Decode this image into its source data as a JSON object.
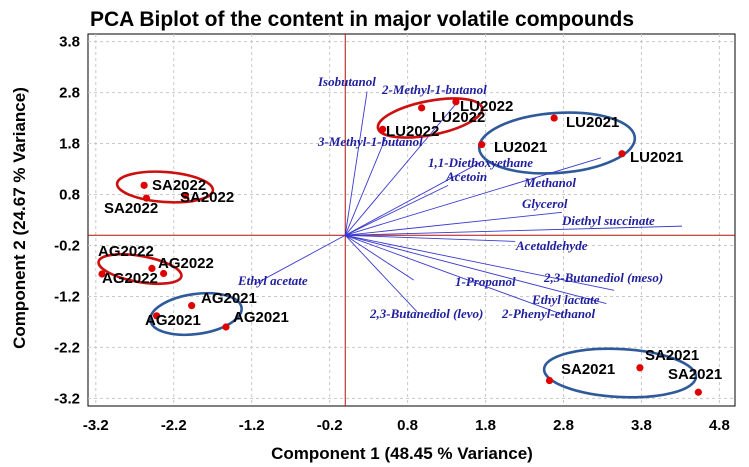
{
  "chart_data": {
    "type": "scatter",
    "title": "PCA Biplot of the content in major volatile compounds",
    "xlabel": "Component 1 (48.45 % Variance)",
    "ylabel": "Component 2 (24.67 % Variance)",
    "xlim": [
      -3.3,
      5.0
    ],
    "ylim": [
      -3.35,
      3.95
    ],
    "xticks": [
      "-3.2",
      "-2.2",
      "-1.2",
      "-0.2",
      "0.8",
      "1.8",
      "2.8",
      "3.8",
      "4.8"
    ],
    "yticks": [
      "3.8",
      "2.8",
      "1.8",
      "0.8",
      "-0.2",
      "-1.2",
      "-2.2",
      "-3.2"
    ],
    "grid": true,
    "colors": {
      "points": "#e00000",
      "vectors": "#3a3ad0",
      "axis_lines": "#b01010",
      "ellipse_red": "#cc1010",
      "ellipse_blue": "#2e5a9a"
    },
    "points": [
      {
        "label": "SA2022",
        "x": -2.58,
        "y": 0.98
      },
      {
        "label": "SA2022",
        "x": -2.55,
        "y": 0.73
      },
      {
        "label": "SA2022",
        "x": -2.05,
        "y": 0.78
      },
      {
        "label": "AG2022",
        "x": -3.12,
        "y": -0.76
      },
      {
        "label": "AG2022",
        "x": -2.48,
        "y": -0.65
      },
      {
        "label": "AG2022",
        "x": -2.33,
        "y": -0.75
      },
      {
        "label": "AG2021",
        "x": -2.42,
        "y": -1.58
      },
      {
        "label": "AG2021",
        "x": -1.97,
        "y": -1.38
      },
      {
        "label": "AG2021",
        "x": -1.53,
        "y": -1.8
      },
      {
        "label": "LU2022",
        "x": 0.48,
        "y": 2.08
      },
      {
        "label": "LU2022",
        "x": 0.98,
        "y": 2.5
      },
      {
        "label": "LU2022",
        "x": 1.42,
        "y": 2.62
      },
      {
        "label": "LU2021",
        "x": 1.75,
        "y": 1.78
      },
      {
        "label": "LU2021",
        "x": 2.68,
        "y": 2.3
      },
      {
        "label": "LU2021",
        "x": 3.55,
        "y": 1.6
      },
      {
        "label": "SA2021",
        "x": 2.62,
        "y": -2.85
      },
      {
        "label": "SA2021",
        "x": 3.78,
        "y": -2.6
      },
      {
        "label": "SA2021",
        "x": 4.53,
        "y": -3.08
      }
    ],
    "vectors": [
      {
        "label": "Isobutanol",
        "x": 0.28,
        "y": 2.82
      },
      {
        "label": "2-Methyl-1-butanol",
        "x": 1.42,
        "y": 2.58
      },
      {
        "label": "3-Methyl-1-butanol",
        "x": 0.52,
        "y": 1.92
      },
      {
        "label": "1,1-Diethoxyethane",
        "x": 1.72,
        "y": 1.42
      },
      {
        "label": "Acetoin",
        "x": 1.32,
        "y": 0.98
      },
      {
        "label": "Methanol",
        "x": 3.28,
        "y": 1.52
      },
      {
        "label": "Glycerol",
        "x": 2.78,
        "y": 0.45
      },
      {
        "label": "Diethyl succinate",
        "x": 4.32,
        "y": 0.18
      },
      {
        "label": "Acetaldehyde",
        "x": 2.18,
        "y": -0.12
      },
      {
        "label": "1-Propanol",
        "x": 0.88,
        "y": -0.88
      },
      {
        "label": "2,3-Butanediol (meso)",
        "x": 3.45,
        "y": -1.08
      },
      {
        "label": "Ethyl lactate",
        "x": 3.35,
        "y": -1.34
      },
      {
        "label": "2-Phenyl-ethanol",
        "x": 2.78,
        "y": -1.55
      },
      {
        "label": "2,3-Butanediol (levo)",
        "x": 0.92,
        "y": -1.5
      },
      {
        "label": "Ethyl acetate",
        "x": -1.15,
        "y": -0.95
      }
    ]
  }
}
